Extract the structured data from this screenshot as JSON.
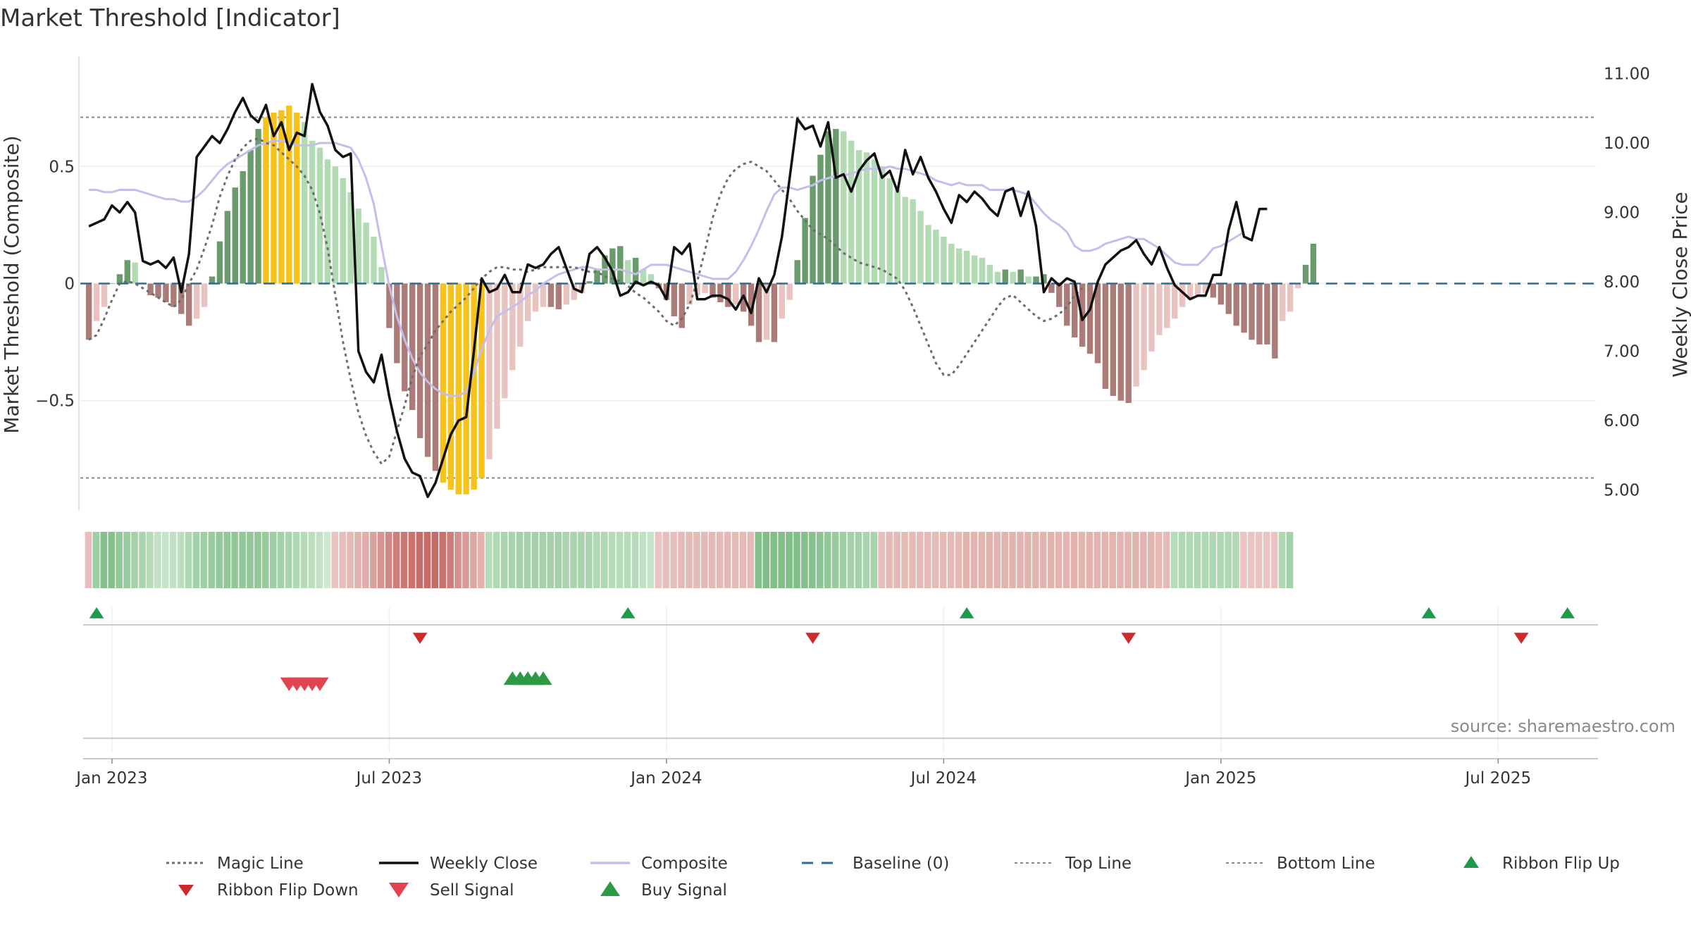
{
  "chart_data": {
    "type": "bar",
    "title": "Market Threshold [Indicator]",
    "ylabel_left": "Market Threshold (Composite)",
    "ylabel_right": "Weekly Close Price",
    "source": "source: sharemaestro.com",
    "y_left": {
      "ticks": [
        0.5,
        0,
        -0.5
      ],
      "tick_labels": [
        "0.5",
        "0",
        "−0.5"
      ],
      "lim": [
        -0.97,
        0.97
      ]
    },
    "y_right": {
      "ticks": [
        11,
        10,
        9,
        8,
        7,
        6,
        5
      ],
      "tick_labels": [
        "11.00",
        "10.00",
        "9.00",
        "8.00",
        "7.00",
        "6.00",
        "5.00"
      ],
      "lim": [
        4.7,
        11.25
      ]
    },
    "x_ticks": [
      "Jan 2023",
      "Jul 2023",
      "Jan 2024",
      "Jul 2024",
      "Jan 2025",
      "Jul 2025"
    ],
    "x_tick_weeks": [
      1,
      37,
      73,
      109,
      145,
      181
    ],
    "top_line": 0.71,
    "bottom_line": -0.83,
    "start_week": -2,
    "composite_bars": [
      -0.24,
      -0.16,
      -0.1,
      0,
      0.04,
      0.1,
      0.09,
      0,
      -0.05,
      -0.06,
      -0.08,
      -0.1,
      -0.13,
      -0.18,
      -0.15,
      -0.1,
      0.03,
      0.18,
      0.31,
      0.41,
      0.48,
      0.57,
      0.66,
      0.71,
      0.73,
      0.74,
      0.76,
      0.73,
      0.69,
      0.61,
      0.58,
      0.53,
      0.5,
      0.45,
      0.39,
      0.32,
      0.26,
      0.2,
      0.07,
      -0.19,
      -0.34,
      -0.46,
      -0.54,
      -0.66,
      -0.74,
      -0.8,
      -0.85,
      -0.88,
      -0.9,
      -0.9,
      -0.88,
      -0.83,
      -0.75,
      -0.62,
      -0.49,
      -0.37,
      -0.27,
      -0.16,
      -0.12,
      -0.1,
      -0.1,
      -0.11,
      -0.09,
      -0.07,
      -0.04,
      0.01,
      0.06,
      0.12,
      0.15,
      0.16,
      0.1,
      0.11,
      0.06,
      0.04,
      -0.02,
      -0.07,
      -0.14,
      -0.19,
      -0.09,
      -0.05,
      -0.04,
      -0.06,
      -0.08,
      -0.1,
      -0.09,
      -0.12,
      -0.18,
      -0.25,
      -0.24,
      -0.25,
      -0.15,
      -0.07,
      0.1,
      0.28,
      0.46,
      0.55,
      0.65,
      0.66,
      0.65,
      0.61,
      0.57,
      0.56,
      0.53,
      0.5,
      0.45,
      0.4,
      0.37,
      0.36,
      0.31,
      0.25,
      0.23,
      0.2,
      0.17,
      0.15,
      0.14,
      0.12,
      0.11,
      0.08,
      0.05,
      0.06,
      0.05,
      0.06,
      0.03,
      0.03,
      0.04,
      -0.04,
      -0.1,
      -0.18,
      -0.23,
      -0.27,
      -0.3,
      -0.34,
      -0.45,
      -0.48,
      -0.5,
      -0.51,
      -0.44,
      -0.37,
      -0.29,
      -0.22,
      -0.19,
      -0.15,
      -0.1,
      -0.07,
      -0.05,
      -0.04,
      -0.06,
      -0.09,
      -0.13,
      -0.18,
      -0.21,
      -0.24,
      -0.26,
      -0.26,
      -0.32,
      -0.16,
      -0.12,
      -0.02,
      0.08,
      0.17
    ],
    "weekly_close": [
      8.8,
      8.85,
      8.9,
      9.1,
      9.0,
      9.15,
      9.0,
      8.3,
      8.25,
      8.3,
      8.2,
      8.35,
      7.85,
      8.4,
      9.8,
      9.95,
      10.1,
      10.0,
      10.2,
      10.45,
      10.65,
      10.4,
      10.3,
      10.55,
      10.1,
      10.3,
      9.9,
      10.15,
      10.1,
      10.85,
      10.45,
      10.25,
      9.9,
      9.8,
      9.85,
      7.0,
      6.7,
      6.55,
      6.95,
      6.35,
      5.85,
      5.45,
      5.25,
      5.2,
      4.9,
      5.1,
      5.45,
      5.8,
      6.0,
      6.05,
      7.0,
      8.05,
      7.85,
      7.9,
      8.1,
      7.85,
      7.85,
      8.25,
      8.2,
      8.25,
      8.4,
      8.5,
      8.2,
      7.9,
      7.85,
      8.4,
      8.5,
      8.35,
      8.15,
      7.8,
      7.85,
      8.0,
      7.95,
      8.0,
      7.95,
      7.75,
      8.5,
      8.4,
      8.55,
      7.75,
      7.75,
      7.8,
      7.8,
      7.75,
      7.6,
      7.8,
      7.55,
      8.05,
      7.85,
      8.1,
      8.65,
      9.5,
      10.35,
      10.2,
      10.25,
      9.95,
      10.3,
      9.5,
      9.55,
      9.3,
      9.6,
      9.75,
      9.85,
      9.5,
      9.6,
      9.3,
      9.9,
      9.55,
      9.8,
      9.5,
      9.3,
      9.05,
      8.85,
      9.25,
      9.15,
      9.3,
      9.2,
      9.05,
      8.95,
      9.3,
      9.35,
      8.95,
      9.3,
      8.8,
      7.85,
      8.05,
      7.95,
      8.05,
      8.0,
      7.45,
      7.6,
      8.0,
      8.25,
      8.35,
      8.45,
      8.5,
      8.6,
      8.4,
      8.25,
      8.5,
      8.2,
      7.95,
      7.85,
      7.75,
      7.8,
      7.8,
      8.1,
      8.1,
      8.75,
      9.15,
      8.65,
      8.6,
      9.05,
      9.05
    ],
    "composite_line": [
      0.4,
      0.4,
      0.39,
      0.39,
      0.4,
      0.4,
      0.4,
      0.39,
      0.38,
      0.37,
      0.36,
      0.36,
      0.35,
      0.35,
      0.37,
      0.4,
      0.44,
      0.48,
      0.51,
      0.53,
      0.55,
      0.57,
      0.59,
      0.6,
      0.61,
      0.61,
      0.6,
      0.59,
      0.59,
      0.59,
      0.6,
      0.6,
      0.6,
      0.59,
      0.58,
      0.53,
      0.45,
      0.34,
      0.16,
      -0.01,
      -0.14,
      -0.24,
      -0.32,
      -0.38,
      -0.42,
      -0.45,
      -0.47,
      -0.48,
      -0.48,
      -0.46,
      -0.38,
      -0.28,
      -0.2,
      -0.14,
      -0.12,
      -0.1,
      -0.08,
      -0.05,
      -0.03,
      0,
      0.02,
      0.04,
      0.05,
      0.06,
      0.07,
      0.07,
      0.06,
      0.06,
      0.06,
      0.06,
      0.05,
      0.04,
      0.06,
      0.08,
      0.08,
      0.08,
      0.07,
      0.06,
      0.05,
      0.04,
      0.03,
      0.02,
      0.02,
      0.02,
      0.05,
      0.1,
      0.16,
      0.23,
      0.31,
      0.38,
      0.41,
      0.41,
      0.4,
      0.41,
      0.42,
      0.44,
      0.45,
      0.46,
      0.46,
      0.47,
      0.48,
      0.49,
      0.49,
      0.49,
      0.5,
      0.49,
      0.49,
      0.48,
      0.47,
      0.46,
      0.44,
      0.43,
      0.42,
      0.43,
      0.42,
      0.42,
      0.42,
      0.4,
      0.4,
      0.4,
      0.4,
      0.39,
      0.38,
      0.34,
      0.3,
      0.27,
      0.25,
      0.22,
      0.16,
      0.14,
      0.14,
      0.15,
      0.17,
      0.18,
      0.19,
      0.2,
      0.19,
      0.19,
      0.17,
      0.15,
      0.12,
      0.09,
      0.08,
      0.08,
      0.08,
      0.11,
      0.15,
      0.16,
      0.18,
      0.2,
      0.22
    ],
    "magic_line": [
      -0.24,
      -0.22,
      -0.15,
      -0.07,
      0.0,
      0.01,
      0.0,
      -0.02,
      -0.04,
      -0.06,
      -0.08,
      -0.1,
      -0.07,
      0.0,
      0.06,
      0.15,
      0.25,
      0.37,
      0.46,
      0.53,
      0.58,
      0.61,
      0.62,
      0.6,
      0.59,
      0.56,
      0.53,
      0.5,
      0.46,
      0.4,
      0.3,
      0.15,
      -0.05,
      -0.25,
      -0.41,
      -0.55,
      -0.65,
      -0.72,
      -0.77,
      -0.74,
      -0.63,
      -0.52,
      -0.4,
      -0.31,
      -0.26,
      -0.2,
      -0.16,
      -0.12,
      -0.09,
      -0.06,
      -0.02,
      0.02,
      0.05,
      0.07,
      0.07,
      0.06,
      0.06,
      0.05,
      0.03,
      0.01,
      -0.04,
      -0.06,
      -0.05,
      -0.04,
      -0.04,
      -0.05,
      -0.06,
      -0.07,
      -0.08,
      -0.1,
      -0.12,
      -0.16,
      -0.18,
      -0.17,
      -0.12,
      -0.02,
      0.14,
      0.3,
      0.42,
      0.47,
      0.49,
      0.51,
      0.52,
      0.5,
      0.46,
      0.42,
      0.38,
      0.34,
      0.3,
      0.26,
      0.23,
      0.2,
      0.18,
      0.14,
      0.1,
      0.09,
      0.08,
      0.06,
      0.05,
      0.03,
      0.0,
      -0.06,
      -0.14,
      -0.22,
      -0.3,
      -0.38,
      -0.4,
      -0.36,
      -0.31,
      -0.25,
      -0.2,
      -0.15,
      -0.1,
      -0.07,
      -0.05,
      -0.07,
      -0.09,
      -0.12,
      -0.15,
      -0.16,
      -0.13,
      -0.11,
      -0.05
    ],
    "magic_line_start_week": -2,
    "magic_line_mid": {
      "start_week": 55,
      "values": [
        0.05,
        0.06,
        0.07,
        0.07,
        0.07,
        0.07,
        0.07,
        0.06,
        0.05,
        0.05,
        0.03,
        0.02,
        0.01,
        -0.01,
        -0.04,
        -0.06,
        -0.09,
        -0.12,
        -0.16,
        -0.18,
        -0.15,
        -0.09,
        0.01,
        0.14,
        0.28,
        0.38,
        0.45,
        0.49,
        0.51,
        0.52,
        0.5,
        0.48,
        0.44,
        0.4,
        0.36,
        0.31,
        0.27,
        0.23,
        0.21,
        0.19,
        0.16,
        0.13,
        0.11,
        0.09,
        0.08,
        0.07,
        0.06,
        0.04,
        0.02,
        -0.03,
        -0.1,
        -0.18,
        -0.26,
        -0.34,
        -0.39,
        -0.39,
        -0.35,
        -0.3,
        -0.25,
        -0.2,
        -0.15,
        -0.1,
        -0.06,
        -0.05,
        -0.08,
        -0.11,
        -0.14,
        -0.16,
        -0.15,
        -0.13,
        -0.1,
        -0.05,
        -0.02
      ]
    },
    "ribbon_values": [
      -0.2,
      0.5,
      0.7,
      0.7,
      0.6,
      0.55,
      0.45,
      0.4,
      0.3,
      0.2,
      0.15,
      0.2,
      0.25,
      0.35,
      0.45,
      0.5,
      0.55,
      0.6,
      0.6,
      0.6,
      0.6,
      0.6,
      0.6,
      0.55,
      0.5,
      0.45,
      0.4,
      0.35,
      0.3,
      0.25,
      0.2,
      0.1,
      -0.15,
      -0.2,
      -0.25,
      -0.3,
      -0.35,
      -0.45,
      -0.55,
      -0.65,
      -0.75,
      -0.8,
      -0.85,
      -0.9,
      -0.9,
      -0.9,
      -0.85,
      -0.75,
      -0.6,
      -0.5,
      -0.4,
      -0.3,
      0.3,
      0.35,
      0.4,
      0.4,
      0.45,
      0.45,
      0.45,
      0.45,
      0.45,
      0.45,
      0.4,
      0.4,
      0.4,
      0.4,
      0.35,
      0.35,
      0.3,
      0.3,
      0.3,
      0.3,
      0.2,
      0.15,
      -0.15,
      -0.2,
      -0.2,
      -0.25,
      -0.25,
      -0.25,
      -0.25,
      -0.25,
      -0.25,
      -0.25,
      -0.25,
      -0.25,
      -0.25,
      0.7,
      0.75,
      0.75,
      0.75,
      0.75,
      0.75,
      0.7,
      0.7,
      0.65,
      0.6,
      0.55,
      0.5,
      0.45,
      0.45,
      0.4,
      0.4,
      -0.2,
      -0.25,
      -0.25,
      -0.25,
      -0.25,
      -0.25,
      -0.25,
      -0.25,
      -0.25,
      -0.25,
      -0.25,
      -0.3,
      -0.3,
      -0.3,
      -0.3,
      -0.3,
      -0.3,
      -0.3,
      -0.3,
      -0.3,
      -0.3,
      -0.3,
      -0.3,
      -0.3,
      -0.3,
      -0.3,
      -0.3,
      -0.3,
      -0.3,
      -0.3,
      -0.3,
      -0.3,
      -0.3,
      -0.3,
      -0.3,
      -0.3,
      -0.25,
      -0.25,
      0.3,
      0.35,
      0.35,
      0.35,
      0.35,
      0.35,
      0.35,
      0.35,
      0.35,
      -0.15,
      -0.15,
      -0.15,
      -0.15,
      -0.15,
      0.35,
      0.45
    ],
    "ribbon_flip_up_weeks": [
      -1,
      68,
      112,
      172,
      190
    ],
    "ribbon_flip_down_weeks": [
      41,
      92,
      133,
      184
    ],
    "sell_signal_weeks": [
      24,
      25,
      26,
      27,
      28
    ],
    "buy_signal_weeks": [
      53,
      54,
      55,
      56,
      57
    ],
    "legend": [
      "Magic Line",
      "Weekly Close",
      "Composite",
      "Baseline (0)",
      "Top Line",
      "Bottom Line",
      "Ribbon Flip Up",
      "Ribbon Flip Down",
      "Sell Signal",
      "Buy Signal"
    ],
    "colors": {
      "bar_green_dark": "#6a9b6c",
      "bar_green_light": "#b3dbb3",
      "bar_red_dark": "#ab7b78",
      "bar_red_light": "#e9c3bf",
      "bar_extreme": "#f7c31a",
      "weekly_close": "#111111",
      "composite": "#c4bfea",
      "magic_line": "#6d6d6d",
      "baseline": "#2a6ea0",
      "threshold_lines": "#888888",
      "flip_up": "#1f9a4c",
      "flip_down": "#cc2b2b",
      "sell": "#e04450",
      "buy": "#2f9a44"
    }
  }
}
